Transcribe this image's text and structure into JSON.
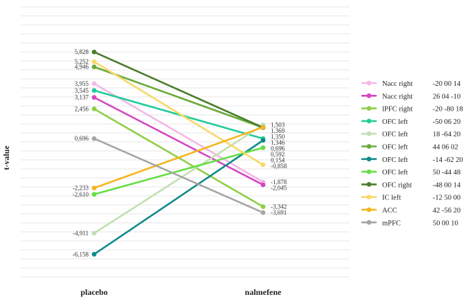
{
  "chart_data": {
    "type": "line",
    "ylabel": "t-value",
    "categories": [
      "placebo",
      "nalmefene"
    ],
    "series": [
      {
        "name": "Nacc right",
        "coords": "-20  00  14",
        "color": "#f2b8e6",
        "values": [
          3.955,
          -1.878
        ],
        "labels": [
          "3,955",
          "-1,878"
        ]
      },
      {
        "name": "Nacc right",
        "coords": "26  04 -10",
        "color": "#d646c3",
        "values": [
          3.137,
          -2.045
        ],
        "labels": [
          "3,137",
          "-2,045"
        ]
      },
      {
        "name": "lPFC right",
        "coords": "-20 -80  18",
        "color": "#8fcf45",
        "values": [
          2.456,
          -3.342
        ],
        "labels": [
          "2,456",
          "-3,342"
        ]
      },
      {
        "name": "OFC left",
        "coords": "-50  06  20",
        "color": "#22cc9a",
        "values": [
          3.545,
          0.696
        ],
        "labels": [
          "3,545",
          "0,696"
        ]
      },
      {
        "name": "OFC left",
        "coords": "18 -64  20",
        "color": "#c2e0b0",
        "values": [
          -4.911,
          1.503
        ],
        "labels": [
          "-4,911",
          "1,503"
        ]
      },
      {
        "name": "OFC left",
        "coords": "44  06  02",
        "color": "#6aaa3a",
        "values": [
          4.946,
          1.346
        ],
        "labels": [
          "4,946",
          "1,346"
        ]
      },
      {
        "name": "OFC left",
        "coords": "-14 -62  20",
        "color": "#108a8a",
        "values": [
          -6.158,
          0.592
        ],
        "labels": [
          "-6,158",
          "0,592"
        ]
      },
      {
        "name": "OFC left",
        "coords": "50 -44  48",
        "color": "#66dd44",
        "values": [
          -2.61,
          0.154
        ],
        "labels": [
          "-2,610",
          "0,154"
        ]
      },
      {
        "name": "OFC right",
        "coords": "-48  00  14",
        "color": "#4a7c2a",
        "values": [
          5.828,
          1.35
        ],
        "labels": [
          "5,828",
          "1,350"
        ]
      },
      {
        "name": "IC left",
        "coords": "-12  50  00",
        "color": "#f8d86a",
        "values": [
          5.252,
          -0.858
        ],
        "labels": [
          "5,252",
          "-0,858"
        ]
      },
      {
        "name": "ACC",
        "coords": "42 -56  20",
        "color": "#f5b51c",
        "values": [
          -2.233,
          1.369
        ],
        "labels": [
          "-2,233",
          "1,369"
        ]
      },
      {
        "name": "mPFC",
        "coords": "50  00  10",
        "color": "#a5a5a5",
        "values": [
          0.696,
          -3.691
        ],
        "labels": [
          "0,696",
          "-3,691"
        ]
      }
    ],
    "ylim": [
      -7.5,
      8.5
    ],
    "grid": true,
    "legend": "right"
  }
}
